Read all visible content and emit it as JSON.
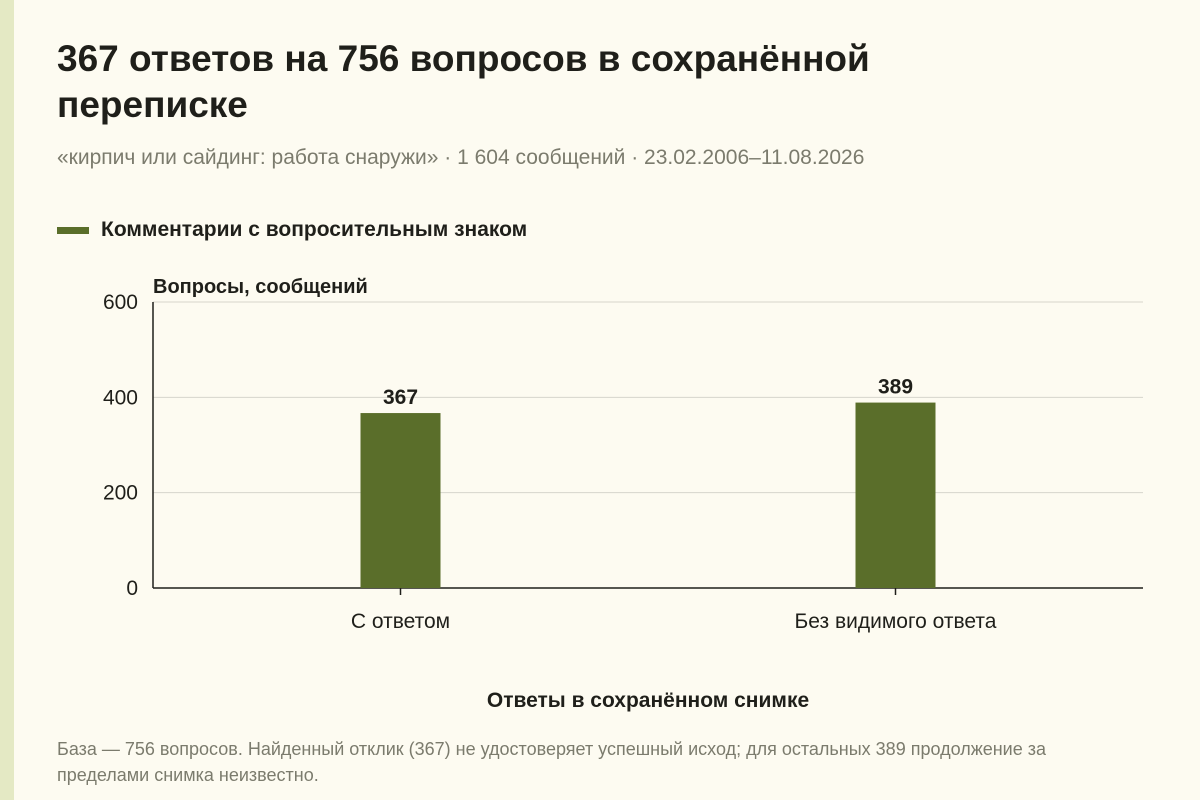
{
  "title": "367 ответов на 756 вопросов в сохранённой переписке",
  "subtitle": "«кирпич или сайдинг: работа снаружи» · 1 604 сообщений · 23.02.2006–11.08.2026",
  "caption": "База — 756 вопросов. Найденный отклик (367) не удостоверяет успешный исход; для остальных 389 продолжение за пределами снимка неизвестно.",
  "colors": {
    "bar": "#5a6e2a",
    "background": "#fdfbf1",
    "accent_strip": "#e4e9c4"
  },
  "chart_data": {
    "type": "bar",
    "categories": [
      "С ответом",
      "Без видимого ответа"
    ],
    "series": [
      {
        "name": "Комментарии с вопросительным знаком",
        "values": [
          367,
          389
        ]
      }
    ],
    "data_labels": [
      "367",
      "389"
    ],
    "xlabel": "Ответы в сохранённом снимке",
    "ylabel": "Вопросы, сообщений",
    "ylim": [
      0,
      600
    ],
    "yticks": [
      0,
      200,
      400,
      600
    ],
    "grid": true,
    "legend_position": "top-left"
  }
}
